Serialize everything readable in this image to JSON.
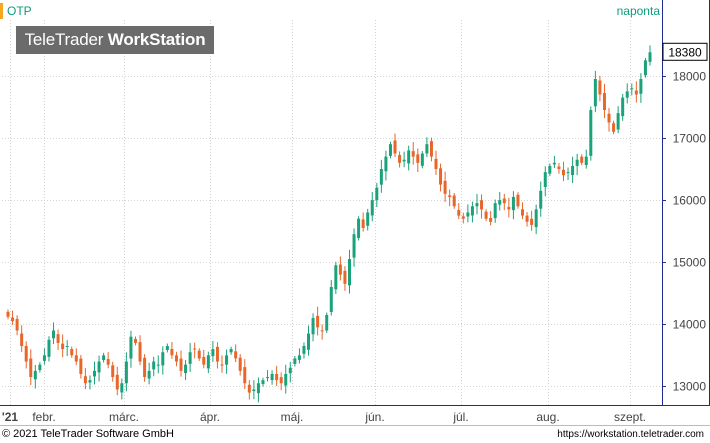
{
  "ticker": "OTP",
  "frequency": "naponta",
  "watermark": {
    "brand": "TeleTrader",
    "product": "WorkStation"
  },
  "footer": {
    "copyright": "© 2021 TeleTrader Software GmbH",
    "url": "https://workstation.teletrader.com"
  },
  "colors": {
    "up": "#1aa27a",
    "down": "#e8662a",
    "axis": "#1f2b8f",
    "grid": "#d4d4d4",
    "text": "#0d9b7a"
  },
  "chart_data": {
    "type": "candlestick",
    "y_ticks": [
      13000,
      14000,
      15000,
      16000,
      17000,
      18000
    ],
    "ylim": [
      12700,
      18900
    ],
    "last_price": 18380,
    "x_ticks": [
      "'21",
      "febr.",
      "márc.",
      "ápr.",
      "máj.",
      "jún.",
      "júl.",
      "aug.",
      "szept."
    ],
    "closes": [
      14120,
      14050,
      13900,
      13650,
      13400,
      13150,
      13250,
      13350,
      13500,
      13750,
      13900,
      13700,
      13600,
      13650,
      13500,
      13400,
      13200,
      13050,
      13100,
      13250,
      13400,
      13500,
      13350,
      13150,
      12950,
      13050,
      13400,
      13800,
      13700,
      13400,
      13150,
      13250,
      13400,
      13350,
      13550,
      13650,
      13500,
      13400,
      13250,
      13350,
      13550,
      13600,
      13450,
      13350,
      13500,
      13600,
      13400,
      13350,
      13500,
      13600,
      13450,
      13250,
      13050,
      12900,
      12950,
      13050,
      13100,
      13150,
      13200,
      13100,
      13050,
      13200,
      13300,
      13450,
      13500,
      13650,
      13850,
      14100,
      13950,
      13900,
      14150,
      14600,
      14950,
      14800,
      14650,
      15050,
      15450,
      15700,
      15550,
      15800,
      16000,
      16200,
      16500,
      16700,
      16900,
      16750,
      16600,
      16650,
      16800,
      16700,
      16600,
      16750,
      16900,
      16700,
      16500,
      16250,
      16100,
      16050,
      15900,
      15750,
      15700,
      15800,
      15900,
      15950,
      15850,
      15700,
      15650,
      15950,
      16000,
      15950,
      15850,
      16050,
      15900,
      15750,
      15650,
      15600,
      15850,
      16150,
      16450,
      16550,
      16600,
      16500,
      16400,
      16450,
      16550,
      16650,
      16600,
      16700,
      17450,
      17950,
      17700,
      17450,
      17250,
      17100,
      17400,
      17650,
      17750,
      17800,
      17700,
      17950,
      18250,
      18380
    ],
    "series": [
      {
        "name": "OTP",
        "values_field": "closes"
      }
    ]
  }
}
